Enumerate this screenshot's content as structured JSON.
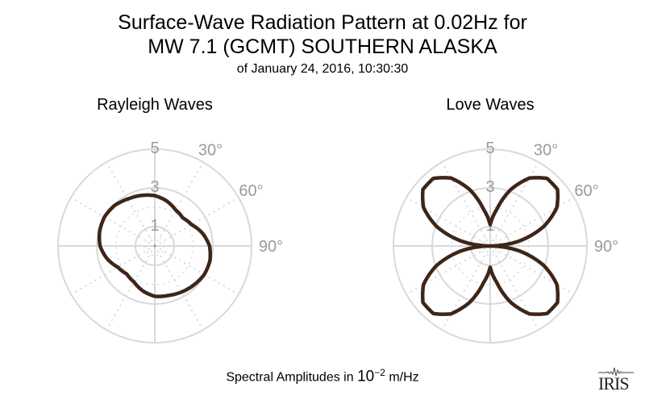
{
  "title": {
    "line1": "Surface-Wave Radiation Pattern at 0.02Hz for",
    "line2": "MW 7.1 (GCMT) SOUTHERN ALASKA",
    "line3": "of January 24, 2016, 10:30:30"
  },
  "footer": {
    "prefix": "Spectral Amplitudes in ",
    "base": "10",
    "exponent": "−2",
    "unit": " m/Hz"
  },
  "logo": {
    "text": "IRIS"
  },
  "colors": {
    "curve": "#3d2618",
    "grid": "#d9d9d9",
    "labels": "#9a9a9a"
  },
  "chart_data": [
    {
      "type": "polar-line",
      "title": "Rayleigh Waves",
      "radial_ticks": [
        "1",
        "3",
        "5"
      ],
      "radial_range": [
        0,
        5
      ],
      "angle_ticks": [
        "30°",
        "60°",
        "90°"
      ],
      "angle_direction": "clockwise from north",
      "grid": true,
      "theta_deg": [
        0,
        15,
        30,
        45,
        60,
        75,
        90,
        105,
        120,
        135,
        150,
        165,
        180,
        195,
        210,
        225,
        240,
        255,
        270,
        285,
        300,
        315,
        330,
        345
      ],
      "r": [
        2.6,
        2.4,
        2.15,
        2.05,
        2.2,
        2.55,
        2.83,
        2.95,
        2.95,
        2.85,
        2.75,
        2.65,
        2.6,
        2.4,
        2.15,
        2.05,
        2.2,
        2.55,
        2.83,
        2.95,
        3.0,
        2.95,
        2.8,
        2.7
      ]
    },
    {
      "type": "polar-line",
      "title": "Love Waves",
      "radial_ticks": [
        "1",
        "3",
        "5"
      ],
      "radial_range": [
        0,
        5
      ],
      "angle_ticks": [
        "30°",
        "60°",
        "90°"
      ],
      "angle_direction": "clockwise from north",
      "grid": true,
      "theta_deg": [
        0,
        10,
        20,
        30,
        40,
        50,
        60,
        70,
        80,
        90,
        100,
        110,
        120,
        130,
        140,
        150,
        160,
        170,
        180,
        190,
        200,
        210,
        220,
        230,
        240,
        250,
        260,
        270,
        280,
        290,
        300,
        310,
        320,
        330,
        340,
        350
      ],
      "r": [
        1.1,
        1.9,
        3.1,
        4.05,
        4.56,
        4.54,
        3.98,
        2.95,
        1.57,
        0,
        1.57,
        2.95,
        3.98,
        4.54,
        4.56,
        4.05,
        3.1,
        1.9,
        1.1,
        1.9,
        3.1,
        4.05,
        4.56,
        4.54,
        3.98,
        2.95,
        1.57,
        0,
        1.57,
        2.95,
        3.98,
        4.54,
        4.56,
        4.05,
        3.1,
        1.9
      ]
    }
  ]
}
